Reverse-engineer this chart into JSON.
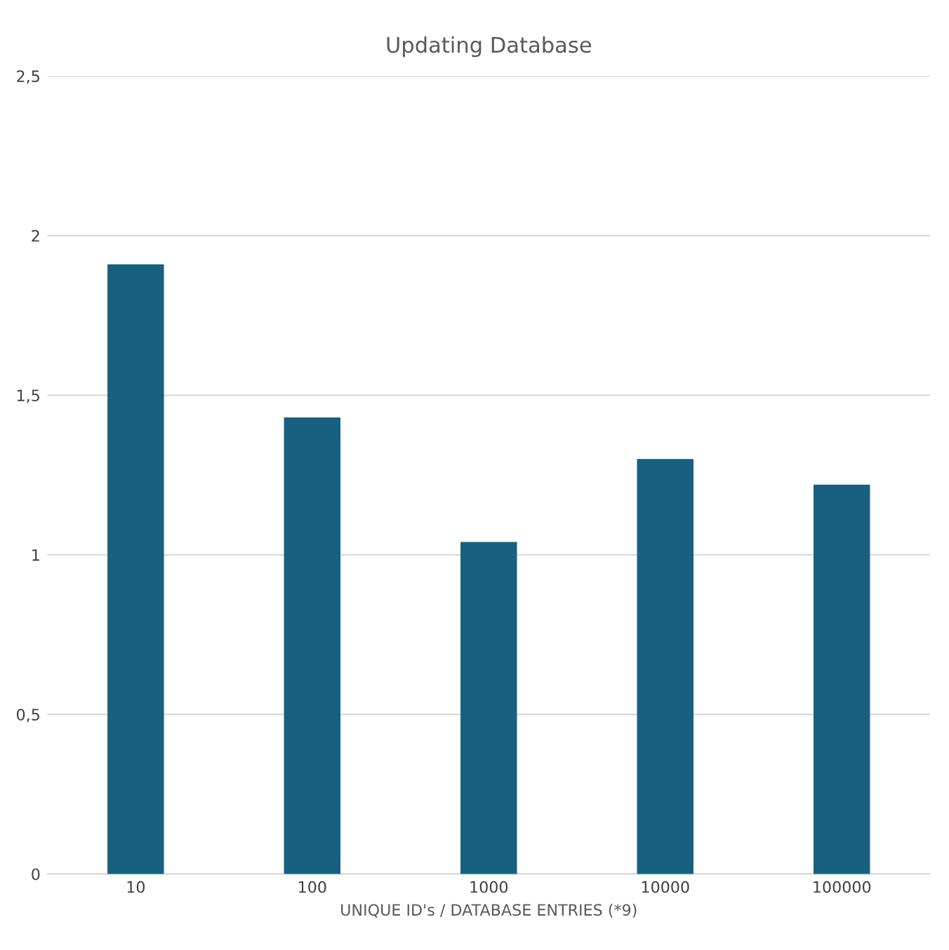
{
  "chart_data": {
    "type": "bar",
    "title": "Updating Database",
    "xlabel": "UNIQUE ID's / DATABASE ENTRIES (*9)",
    "categories": [
      "10",
      "100",
      "1000",
      "10000",
      "100000"
    ],
    "values": [
      1.91,
      1.43,
      1.04,
      1.3,
      1.22
    ],
    "color": "#17607f",
    "ylim": [
      0,
      2.5
    ],
    "yticks": [
      0,
      {
        "value": 0.5,
        "label": "0,5"
      },
      1,
      {
        "value": 1.5,
        "label": "1,5"
      },
      2,
      {
        "value": 2.5,
        "label": "2,5"
      }
    ],
    "grid": "y"
  }
}
